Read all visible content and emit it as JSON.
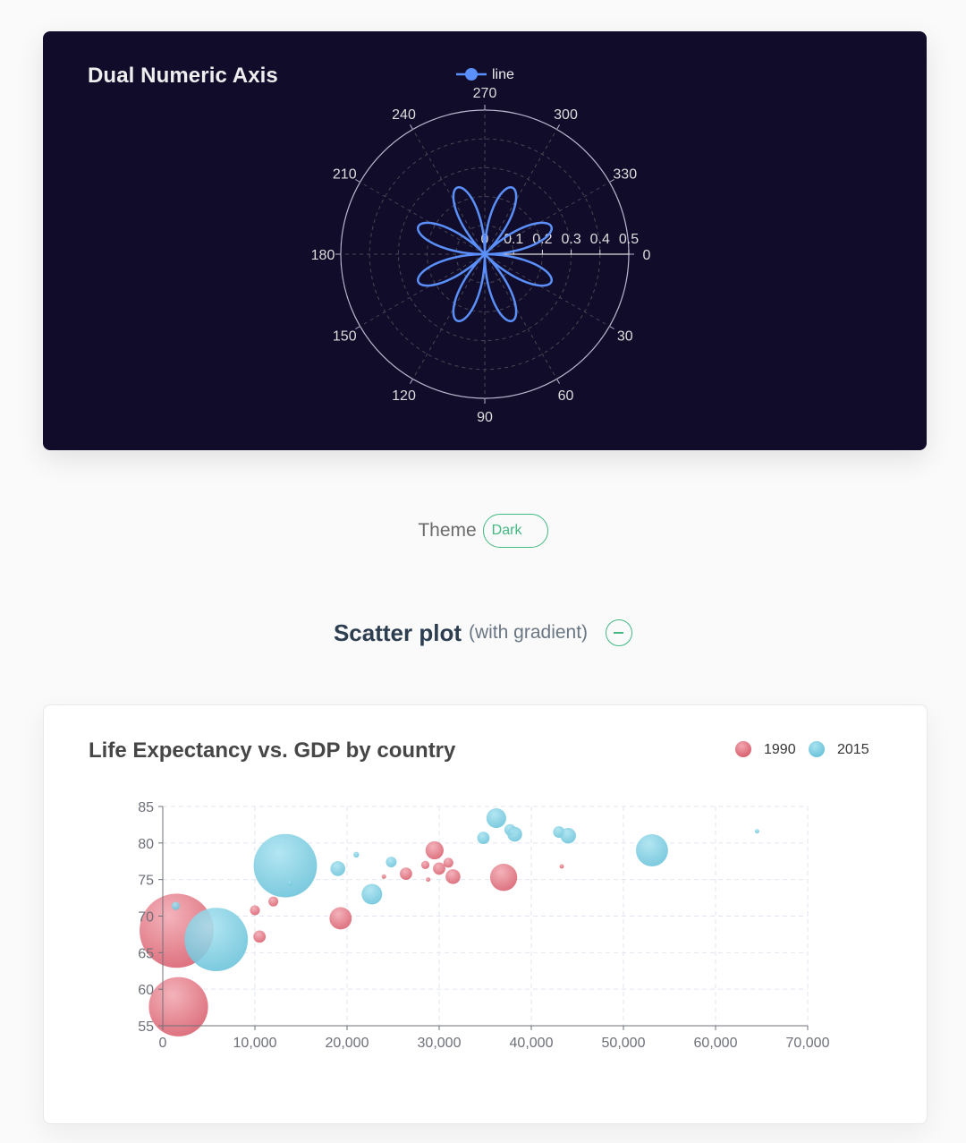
{
  "polar_card": {
    "background": "#100c2a",
    "line_color": "#5b8ff9"
  },
  "theme": {
    "label": "Theme",
    "value": "Dark",
    "accent": "#42b983"
  },
  "section": {
    "title": "Scatter plot",
    "subtitle": "(with gradient)",
    "toggle_icon": "minus-circle-icon"
  },
  "chart_data": [
    {
      "type": "line",
      "coordinate_system": "polar",
      "title": "Dual Numeric Axis",
      "legend": [
        "line"
      ],
      "legend_position": "top-center",
      "angle_axis": {
        "min": 0,
        "max": 360,
        "direction": "clockwise",
        "ticks": [
          "0",
          "30",
          "60",
          "90",
          "120",
          "150",
          "180",
          "210",
          "240",
          "270",
          "300",
          "330"
        ]
      },
      "radius_axis": {
        "min": 0,
        "max": 0.5,
        "ticks": [
          "0",
          "0.1",
          "0.2",
          "0.3",
          "0.4",
          "0.5"
        ]
      },
      "series": [
        {
          "name": "line",
          "color": "#5b8ff9",
          "formula": "r = 0.5 * |sin(2t) * cos(2t)|, angle = t in degrees",
          "angles": [
            0,
            5,
            10,
            15,
            20,
            22.5,
            25,
            30,
            35,
            40,
            45,
            50,
            55,
            60,
            65,
            67.5,
            70,
            75,
            80,
            85,
            90
          ],
          "values": [
            0,
            0.0855,
            0.1607,
            0.2165,
            0.2462,
            0.25,
            0.2462,
            0.2165,
            0.1607,
            0.0855,
            0,
            0.0855,
            0.1607,
            0.2165,
            0.2462,
            0.25,
            0.2462,
            0.2165,
            0.1607,
            0.0855,
            0
          ],
          "repeat": "pattern repeats every 90 degrees through 360"
        }
      ]
    },
    {
      "type": "scatter",
      "title": "Life Expectancy vs. GDP by country",
      "legend": [
        "1990",
        "2015"
      ],
      "legend_position": "top-right",
      "xlim": [
        0,
        70000
      ],
      "ylim": [
        55,
        85
      ],
      "x_ticks": [
        "0",
        "10,000",
        "20,000",
        "30,000",
        "40,000",
        "50,000",
        "60,000",
        "70,000"
      ],
      "y_ticks": [
        "55",
        "60",
        "65",
        "70",
        "75",
        "80",
        "85"
      ],
      "grid": true,
      "series": [
        {
          "name": "1990",
          "color": "#dd6b7a",
          "points": [
            {
              "x": 1500,
              "y": 68,
              "size": 0.9
            },
            {
              "x": 1700,
              "y": 57.6,
              "size": 0.72
            },
            {
              "x": 10000,
              "y": 70.8,
              "size": 0.12
            },
            {
              "x": 10500,
              "y": 67.2,
              "size": 0.15
            },
            {
              "x": 12000,
              "y": 72,
              "size": 0.12
            },
            {
              "x": 19300,
              "y": 69.7,
              "size": 0.27
            },
            {
              "x": 24000,
              "y": 75.4,
              "size": 0.04
            },
            {
              "x": 26400,
              "y": 75.8,
              "size": 0.15
            },
            {
              "x": 28500,
              "y": 77,
              "size": 0.1
            },
            {
              "x": 28800,
              "y": 75,
              "size": 0.04
            },
            {
              "x": 29500,
              "y": 79,
              "size": 0.22
            },
            {
              "x": 30000,
              "y": 76.5,
              "size": 0.15
            },
            {
              "x": 31000,
              "y": 77.3,
              "size": 0.12
            },
            {
              "x": 31500,
              "y": 75.4,
              "size": 0.18
            },
            {
              "x": 37000,
              "y": 75.3,
              "size": 0.33
            },
            {
              "x": 43300,
              "y": 76.8,
              "size": 0.04
            }
          ]
        },
        {
          "name": "2015",
          "color": "#7ccbe0",
          "points": [
            {
              "x": 1400,
              "y": 71.4,
              "size": 0.1
            },
            {
              "x": 5800,
              "y": 66.8,
              "size": 0.77
            },
            {
              "x": 13300,
              "y": 76.9,
              "size": 0.77
            },
            {
              "x": 13800,
              "y": 74.5,
              "size": 0.06
            },
            {
              "x": 19000,
              "y": 76.5,
              "size": 0.18
            },
            {
              "x": 21000,
              "y": 78.4,
              "size": 0.07
            },
            {
              "x": 22700,
              "y": 73,
              "size": 0.25
            },
            {
              "x": 24800,
              "y": 77.4,
              "size": 0.13
            },
            {
              "x": 34800,
              "y": 80.7,
              "size": 0.15
            },
            {
              "x": 36200,
              "y": 83.4,
              "size": 0.24
            },
            {
              "x": 37700,
              "y": 81.8,
              "size": 0.14
            },
            {
              "x": 38200,
              "y": 81.2,
              "size": 0.18
            },
            {
              "x": 43000,
              "y": 81.5,
              "size": 0.14
            },
            {
              "x": 44000,
              "y": 81,
              "size": 0.19
            },
            {
              "x": 53100,
              "y": 79,
              "size": 0.39
            },
            {
              "x": 64500,
              "y": 81.6,
              "size": 0.05
            }
          ]
        }
      ]
    }
  ]
}
